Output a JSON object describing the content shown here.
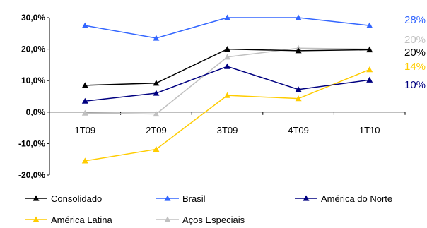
{
  "chart_data": {
    "type": "line",
    "categories": [
      "1T09",
      "2T09",
      "3T09",
      "4T09",
      "1T10"
    ],
    "ylim": [
      -20,
      30
    ],
    "yticks": [
      30,
      20,
      10,
      0,
      -10,
      -20
    ],
    "ytick_labels": [
      "30,0%",
      "20,0%",
      "10,0%",
      "0,0%",
      "-10,0%",
      "-20,0%"
    ],
    "grid": false,
    "legend_position": "bottom",
    "series": [
      {
        "name": "Consolidado",
        "color": "#000000",
        "values": [
          8.5,
          9.2,
          20.0,
          19.5,
          19.8
        ]
      },
      {
        "name": "Brasil",
        "color": "#3366ff",
        "values": [
          27.5,
          23.5,
          30.0,
          30.0,
          27.5
        ]
      },
      {
        "name": "América do Norte",
        "color": "#000080",
        "values": [
          3.5,
          6.0,
          14.5,
          7.2,
          10.2
        ]
      },
      {
        "name": "América Latina",
        "color": "#ffcc00",
        "values": [
          -15.5,
          -11.8,
          5.3,
          4.3,
          13.5
        ]
      },
      {
        "name": "Aços Especiais",
        "color": "#c0c0c0",
        "values": [
          -0.3,
          -0.6,
          17.5,
          20.3,
          20.0
        ]
      }
    ],
    "end_labels": [
      {
        "text": "28%",
        "color": "#3366ff"
      },
      {
        "text": "20%",
        "color": "#c0c0c0"
      },
      {
        "text": "20%",
        "color": "#000000"
      },
      {
        "text": "14%",
        "color": "#ffcc00"
      },
      {
        "text": "10%",
        "color": "#000080"
      }
    ]
  }
}
